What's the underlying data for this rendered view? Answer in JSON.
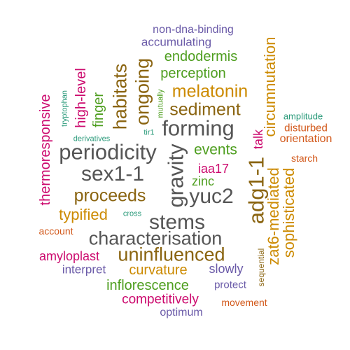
{
  "palette": {
    "grey": "#555555",
    "gold": "#cc8a00",
    "brown": "#8a6410",
    "green": "#4e9e1f",
    "magenta": "#cc0a6e",
    "purple": "#6a5aa8",
    "orange": "#d2581a",
    "teal": "#2a9a7a"
  },
  "words": [
    {
      "id": "non-dna-binding",
      "text": "non-dna-binding",
      "color": "#6a5aa8"
    },
    {
      "id": "accumulating",
      "text": "accumulating",
      "color": "#6a5aa8"
    },
    {
      "id": "endodermis",
      "text": "endodermis",
      "color": "#4e9e1f"
    },
    {
      "id": "perception",
      "text": "perception",
      "color": "#4e9e1f"
    },
    {
      "id": "melatonin",
      "text": "melatonin",
      "color": "#cc8a00"
    },
    {
      "id": "sediment",
      "text": "sediment",
      "color": "#8a6410"
    },
    {
      "id": "forming",
      "text": "forming",
      "color": "#555555"
    },
    {
      "id": "periodicity",
      "text": "periodicity",
      "color": "#555555"
    },
    {
      "id": "events",
      "text": "events",
      "color": "#4e9e1f"
    },
    {
      "id": "sex1-1",
      "text": "sex1-1",
      "color": "#555555"
    },
    {
      "id": "iaa17",
      "text": "iaa17",
      "color": "#cc0a6e"
    },
    {
      "id": "zinc",
      "text": "zinc",
      "color": "#4e9e1f"
    },
    {
      "id": "yuc2",
      "text": "yuc2",
      "color": "#555555"
    },
    {
      "id": "proceeds",
      "text": "proceeds",
      "color": "#8a6410"
    },
    {
      "id": "typified",
      "text": "typified",
      "color": "#cc8a00"
    },
    {
      "id": "cross",
      "text": "cross",
      "color": "#2a9a7a"
    },
    {
      "id": "stems",
      "text": "stems",
      "color": "#555555"
    },
    {
      "id": "account",
      "text": "account",
      "color": "#d2581a"
    },
    {
      "id": "characterisation",
      "text": "characterisation",
      "color": "#555555"
    },
    {
      "id": "amyloplast",
      "text": "amyloplast",
      "color": "#cc0a6e"
    },
    {
      "id": "uninfluenced",
      "text": "uninfluenced",
      "color": "#8a6410"
    },
    {
      "id": "interpret",
      "text": "interpret",
      "color": "#6a5aa8"
    },
    {
      "id": "curvature",
      "text": "curvature",
      "color": "#cc8a00"
    },
    {
      "id": "slowly",
      "text": "slowly",
      "color": "#6a5aa8"
    },
    {
      "id": "inflorescence",
      "text": "inflorescence",
      "color": "#4e9e1f"
    },
    {
      "id": "protect",
      "text": "protect",
      "color": "#6a5aa8"
    },
    {
      "id": "competitively",
      "text": "competitively",
      "color": "#cc0a6e"
    },
    {
      "id": "movement",
      "text": "movement",
      "color": "#d2581a"
    },
    {
      "id": "optimum",
      "text": "optimum",
      "color": "#6a5aa8"
    },
    {
      "id": "amplitude",
      "text": "amplitude",
      "color": "#2a9a7a"
    },
    {
      "id": "disturbed",
      "text": "disturbed",
      "color": "#d2581a"
    },
    {
      "id": "orientation",
      "text": "orientation",
      "color": "#d2581a"
    },
    {
      "id": "starch",
      "text": "starch",
      "color": "#d2581a"
    },
    {
      "id": "derivatives",
      "text": "derivatives",
      "color": "#2a9a7a"
    },
    {
      "id": "tir1",
      "text": "tir1",
      "color": "#2a9a7a"
    },
    {
      "id": "thermoresponsive",
      "text": "thermoresponsive",
      "color": "#cc0a6e"
    },
    {
      "id": "tryptophan",
      "text": "tryptophan",
      "color": "#2a9a7a"
    },
    {
      "id": "high-level",
      "text": "high-level",
      "color": "#cc0a6e"
    },
    {
      "id": "finger",
      "text": "finger",
      "color": "#4e9e1f"
    },
    {
      "id": "habitats",
      "text": "habitats",
      "color": "#8a6410"
    },
    {
      "id": "ongoing",
      "text": "ongoing",
      "color": "#8a6410"
    },
    {
      "id": "mutually",
      "text": "mutually",
      "color": "#4e9e1f"
    },
    {
      "id": "gravity",
      "text": "gravity",
      "color": "#555555"
    },
    {
      "id": "circumnutation",
      "text": "circumnutation",
      "color": "#cc8a00"
    },
    {
      "id": "talk",
      "text": "talk",
      "color": "#cc0a6e"
    },
    {
      "id": "adg1-1",
      "text": "adg1-1",
      "color": "#8a6410"
    },
    {
      "id": "zat6-mediated",
      "text": "zat6-mediated",
      "color": "#cc8a00"
    },
    {
      "id": "sophisticated",
      "text": "sophisticated",
      "color": "#cc8a00"
    },
    {
      "id": "sequential",
      "text": "sequential",
      "color": "#8a6410"
    }
  ]
}
